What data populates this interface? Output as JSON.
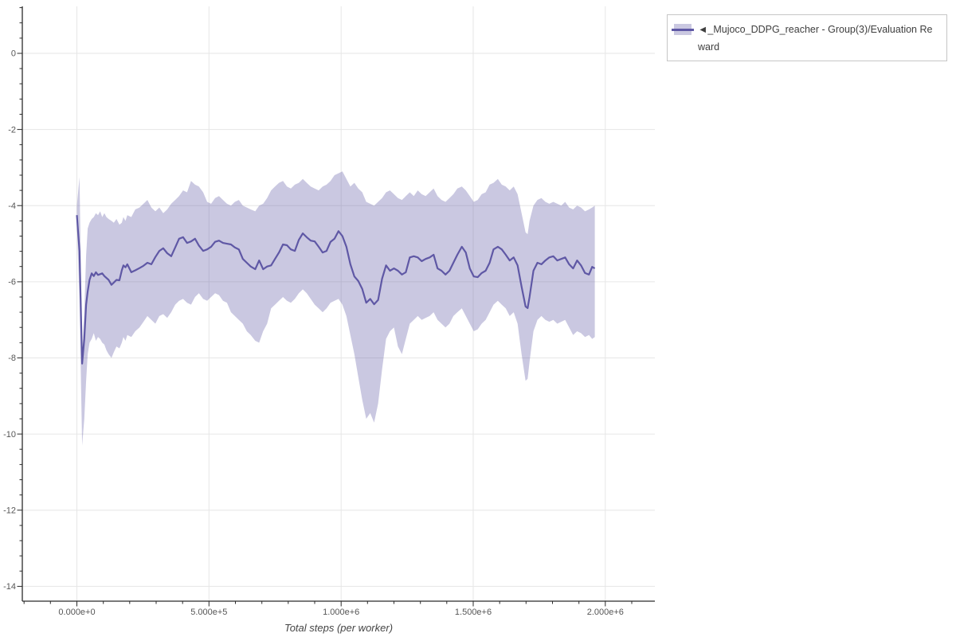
{
  "page": {
    "background": "#ffffff"
  },
  "legend": {
    "border_color": "#c6c6c6"
  },
  "chart_data": {
    "type": "line",
    "title": "",
    "xlabel": "Total steps (per worker)",
    "ylabel": "",
    "grid": true,
    "legend_position": "outside-top-right",
    "xlim": [
      -206500,
      2187400
    ],
    "ylim": [
      -14.39,
      1.234
    ],
    "x_ticks": [
      0,
      500000,
      1000000,
      1500000,
      2000000
    ],
    "x_tick_labels": [
      "0.000e+0",
      "5.000e+5",
      "1.000e+6",
      "1.500e+6",
      "2.000e+6"
    ],
    "x_minor_step": 100000,
    "y_ticks": [
      0,
      -2,
      -4,
      -6,
      -8,
      -10,
      -12,
      -14
    ],
    "y_minor_step": 0.4,
    "colors": {
      "grid": "#e6e6e6",
      "axis": "#2b2b2b",
      "tick_label": "#565656",
      "axis_title": "#454545"
    },
    "series": [
      {
        "name": "◄_Mujoco_DDPG_reacher - Group(3)/Evaluation Reward",
        "color": "#5f58a5",
        "band_color": "rgba(95,88,165,0.33)",
        "x": [
          0,
          10000,
          20000,
          28000,
          35000,
          41000,
          48000,
          56000,
          64000,
          72000,
          80000,
          88000,
          96000,
          104000,
          112000,
          120000,
          131000,
          140000,
          150000,
          161000,
          170000,
          176000,
          184000,
          191000,
          206000,
          221000,
          237000,
          252000,
          267000,
          282000,
          297000,
          312000,
          327000,
          342000,
          357000,
          372000,
          387000,
          402000,
          417000,
          432000,
          447000,
          462000,
          478000,
          493000,
          508000,
          523000,
          538000,
          553000,
          568000,
          583000,
          598000,
          613000,
          628000,
          643000,
          658000,
          675000,
          690000,
          705000,
          720000,
          735000,
          750000,
          765000,
          780000,
          795000,
          810000,
          825000,
          840000,
          855000,
          870000,
          885000,
          900000,
          915000,
          930000,
          945000,
          960000,
          975000,
          990000,
          1005000,
          1020000,
          1035000,
          1050000,
          1065000,
          1080000,
          1095000,
          1110000,
          1125000,
          1140000,
          1155000,
          1170000,
          1185000,
          1200000,
          1215000,
          1230000,
          1245000,
          1260000,
          1275000,
          1290000,
          1305000,
          1320000,
          1335000,
          1350000,
          1365000,
          1380000,
          1395000,
          1410000,
          1425000,
          1440000,
          1457000,
          1472000,
          1487000,
          1502000,
          1517000,
          1532000,
          1547000,
          1562000,
          1577000,
          1593000,
          1608000,
          1623000,
          1638000,
          1653000,
          1668000,
          1683000,
          1698000,
          1706000,
          1713000,
          1728000,
          1743000,
          1758000,
          1773000,
          1788000,
          1803000,
          1818000,
          1833000,
          1848000,
          1863000,
          1878000,
          1893000,
          1908000,
          1923000,
          1938000,
          1950000,
          1960000
        ],
        "mean": [
          -4.25,
          -5.2,
          -8.15,
          -7.5,
          -6.6,
          -6.25,
          -5.95,
          -5.78,
          -5.85,
          -5.75,
          -5.82,
          -5.8,
          -5.78,
          -5.85,
          -5.9,
          -5.95,
          -6.08,
          -6.02,
          -5.95,
          -5.96,
          -5.7,
          -5.57,
          -5.62,
          -5.54,
          -5.75,
          -5.7,
          -5.64,
          -5.58,
          -5.5,
          -5.54,
          -5.35,
          -5.19,
          -5.12,
          -5.25,
          -5.33,
          -5.1,
          -4.87,
          -4.83,
          -4.98,
          -4.94,
          -4.87,
          -5.05,
          -5.19,
          -5.15,
          -5.08,
          -4.95,
          -4.92,
          -4.98,
          -5.0,
          -5.02,
          -5.1,
          -5.15,
          -5.4,
          -5.5,
          -5.6,
          -5.67,
          -5.44,
          -5.67,
          -5.6,
          -5.57,
          -5.4,
          -5.23,
          -5.02,
          -5.04,
          -5.15,
          -5.19,
          -4.9,
          -4.73,
          -4.83,
          -4.92,
          -4.94,
          -5.08,
          -5.23,
          -5.19,
          -4.95,
          -4.87,
          -4.67,
          -4.8,
          -5.08,
          -5.54,
          -5.86,
          -5.98,
          -6.19,
          -6.55,
          -6.45,
          -6.59,
          -6.48,
          -5.92,
          -5.57,
          -5.71,
          -5.65,
          -5.71,
          -5.81,
          -5.75,
          -5.36,
          -5.33,
          -5.36,
          -5.46,
          -5.4,
          -5.36,
          -5.29,
          -5.65,
          -5.71,
          -5.81,
          -5.71,
          -5.5,
          -5.29,
          -5.08,
          -5.23,
          -5.65,
          -5.86,
          -5.88,
          -5.77,
          -5.71,
          -5.5,
          -5.15,
          -5.08,
          -5.15,
          -5.29,
          -5.44,
          -5.36,
          -5.57,
          -6.13,
          -6.65,
          -6.69,
          -6.4,
          -5.71,
          -5.5,
          -5.54,
          -5.44,
          -5.36,
          -5.33,
          -5.44,
          -5.4,
          -5.36,
          -5.54,
          -5.65,
          -5.44,
          -5.57,
          -5.77,
          -5.81,
          -5.61,
          -5.65
        ],
        "hi": [
          -4.0,
          -3.25,
          -7.9,
          -6.8,
          -5.3,
          -4.6,
          -4.45,
          -4.35,
          -4.3,
          -4.2,
          -4.25,
          -4.15,
          -4.3,
          -4.2,
          -4.3,
          -4.35,
          -4.4,
          -4.45,
          -4.35,
          -4.5,
          -4.45,
          -4.3,
          -4.4,
          -4.25,
          -4.3,
          -4.1,
          -4.05,
          -3.95,
          -3.85,
          -4.05,
          -4.15,
          -4.05,
          -4.2,
          -4.1,
          -3.95,
          -3.85,
          -3.75,
          -3.6,
          -3.65,
          -3.35,
          -3.45,
          -3.5,
          -3.65,
          -3.9,
          -3.95,
          -3.8,
          -3.75,
          -3.85,
          -3.95,
          -4.0,
          -3.9,
          -3.85,
          -4.0,
          -4.05,
          -4.1,
          -4.15,
          -4.0,
          -3.95,
          -3.8,
          -3.6,
          -3.5,
          -3.4,
          -3.35,
          -3.5,
          -3.55,
          -3.45,
          -3.4,
          -3.3,
          -3.4,
          -3.5,
          -3.55,
          -3.6,
          -3.5,
          -3.45,
          -3.35,
          -3.2,
          -3.15,
          -3.1,
          -3.3,
          -3.5,
          -3.4,
          -3.55,
          -3.65,
          -3.9,
          -3.95,
          -4.0,
          -3.9,
          -3.8,
          -3.65,
          -3.6,
          -3.7,
          -3.8,
          -3.85,
          -3.75,
          -3.65,
          -3.75,
          -3.6,
          -3.7,
          -3.75,
          -3.65,
          -3.55,
          -3.75,
          -3.85,
          -3.9,
          -3.8,
          -3.7,
          -3.55,
          -3.5,
          -3.6,
          -3.75,
          -3.9,
          -3.85,
          -3.7,
          -3.65,
          -3.45,
          -3.4,
          -3.3,
          -3.45,
          -3.5,
          -3.6,
          -3.5,
          -3.7,
          -4.2,
          -4.7,
          -4.75,
          -4.4,
          -4.0,
          -3.85,
          -3.8,
          -3.9,
          -3.95,
          -3.9,
          -3.95,
          -4.0,
          -3.9,
          -4.05,
          -4.1,
          -4.0,
          -4.05,
          -4.15,
          -4.1,
          -4.05,
          -4.0
        ],
        "lo": [
          -4.5,
          -6.5,
          -10.3,
          -9.6,
          -8.6,
          -7.9,
          -7.6,
          -7.5,
          -7.35,
          -7.55,
          -7.45,
          -7.5,
          -7.6,
          -7.65,
          -7.8,
          -7.9,
          -8.0,
          -7.85,
          -7.7,
          -7.75,
          -7.6,
          -7.45,
          -7.55,
          -7.4,
          -7.45,
          -7.3,
          -7.2,
          -7.05,
          -6.9,
          -7.0,
          -7.1,
          -6.9,
          -6.85,
          -6.95,
          -6.8,
          -6.6,
          -6.5,
          -6.45,
          -6.55,
          -6.6,
          -6.4,
          -6.3,
          -6.45,
          -6.5,
          -6.4,
          -6.3,
          -6.35,
          -6.5,
          -6.55,
          -6.8,
          -6.9,
          -7.0,
          -7.1,
          -7.3,
          -7.4,
          -7.55,
          -7.6,
          -7.3,
          -7.1,
          -6.7,
          -6.6,
          -6.5,
          -6.4,
          -6.5,
          -6.55,
          -6.45,
          -6.3,
          -6.2,
          -6.3,
          -6.45,
          -6.6,
          -6.7,
          -6.8,
          -6.7,
          -6.55,
          -6.5,
          -6.45,
          -6.6,
          -6.9,
          -7.4,
          -7.9,
          -8.5,
          -9.1,
          -9.6,
          -9.45,
          -9.7,
          -9.2,
          -8.3,
          -7.5,
          -7.3,
          -7.2,
          -7.7,
          -7.9,
          -7.5,
          -7.1,
          -7.0,
          -6.9,
          -7.0,
          -6.95,
          -6.9,
          -6.8,
          -7.0,
          -7.1,
          -7.2,
          -7.1,
          -6.9,
          -6.8,
          -6.7,
          -6.9,
          -7.1,
          -7.3,
          -7.25,
          -7.1,
          -7.0,
          -6.8,
          -6.6,
          -6.5,
          -6.6,
          -6.7,
          -6.9,
          -6.8,
          -7.1,
          -7.9,
          -8.6,
          -8.55,
          -8.1,
          -7.3,
          -7.0,
          -6.9,
          -7.0,
          -7.05,
          -7.0,
          -7.1,
          -7.05,
          -7.0,
          -7.2,
          -7.4,
          -7.3,
          -7.35,
          -7.45,
          -7.4,
          -7.5,
          -7.45
        ]
      }
    ]
  }
}
